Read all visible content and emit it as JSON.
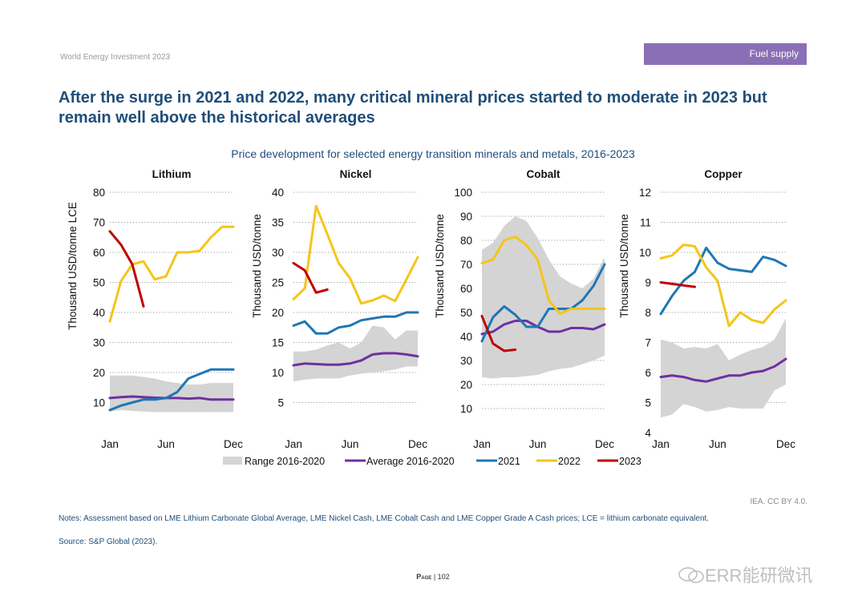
{
  "header": {
    "report": "World Energy Investment 2023",
    "section_tag": "Fuel supply"
  },
  "headline": "After the surge in 2021 and 2022, many critical mineral prices started to moderate in 2023 but remain well above the historical averages",
  "colors": {
    "range": "#d4d4d4",
    "average": "#7030a0",
    "y2021": "#1f77b4",
    "y2022": "#f5c518",
    "y2023": "#c00000",
    "title": "#1f4e79"
  },
  "chart_data": {
    "type": "line",
    "title": "Price development for selected energy transition minerals and metals, 2016-2023",
    "x_tick_labels": [
      "Jan",
      "Jun",
      "Dec"
    ],
    "legend": {
      "position": "bottom",
      "items": [
        "Range 2016-2020",
        "Average 2016-2020",
        "2021",
        "2022",
        "2023"
      ]
    },
    "panels": [
      {
        "title": "Lithium",
        "ylabel": "Thousand USD/tonne LCE",
        "ylim": [
          0,
          80
        ],
        "yticks": [
          10,
          20,
          30,
          40,
          50,
          60,
          70,
          80
        ],
        "range_low": [
          7,
          7.5,
          7.2,
          7,
          6.8,
          6.8,
          6.8,
          6.8,
          6.8,
          6.8,
          6.8,
          6.8
        ],
        "range_high": [
          19,
          19,
          19,
          18.5,
          18,
          17,
          16.5,
          16,
          16,
          16.5,
          16.5,
          16.5
        ],
        "average": [
          11.5,
          11.8,
          12,
          11.8,
          11.6,
          11.5,
          11.5,
          11.3,
          11.5,
          11,
          11,
          11
        ],
        "y2021": [
          7.5,
          9,
          10,
          11,
          11,
          11.5,
          13.5,
          18,
          19.5,
          21,
          21,
          21
        ],
        "y2022": [
          37,
          50.5,
          56,
          57,
          51,
          52,
          60,
          60,
          60.5,
          65,
          68.5,
          68.5
        ],
        "y2023": [
          67,
          62.5,
          56,
          42
        ]
      },
      {
        "title": "Nickel",
        "ylabel": "Thousand USD/tonne",
        "ylim": [
          0,
          40
        ],
        "yticks": [
          5,
          10,
          15,
          20,
          25,
          30,
          35,
          40
        ],
        "range_low": [
          8.5,
          8.8,
          9,
          9,
          9,
          9.5,
          9.8,
          10,
          10.2,
          10.5,
          11,
          11
        ],
        "range_high": [
          13.5,
          13.5,
          13.8,
          14.5,
          15,
          14,
          15,
          17.8,
          17.5,
          15.5,
          17,
          17
        ],
        "average": [
          11.2,
          11.5,
          11.4,
          11.3,
          11.3,
          11.5,
          12,
          13,
          13.2,
          13.2,
          13,
          12.7
        ],
        "y2021": [
          17.8,
          18.5,
          16.5,
          16.5,
          17.5,
          17.8,
          18.7,
          19,
          19.3,
          19.3,
          20,
          20
        ],
        "y2022": [
          22.2,
          24,
          37.7,
          33,
          28.2,
          25.7,
          21.5,
          22,
          22.8,
          21.9,
          25.5,
          29.2
        ],
        "y2023": [
          28.2,
          27,
          23.3,
          23.8
        ]
      },
      {
        "title": "Cobalt",
        "ylabel": "Thousand USD/tonne",
        "ylim": [
          0,
          100
        ],
        "yticks": [
          10,
          20,
          30,
          40,
          50,
          60,
          70,
          80,
          90,
          100
        ],
        "range_low": [
          23,
          22.5,
          23,
          23,
          23.5,
          24,
          25.5,
          26.5,
          27,
          28.5,
          30,
          32
        ],
        "range_high": [
          76,
          79,
          86,
          90,
          88,
          81,
          72,
          65,
          62,
          60,
          64,
          73
        ],
        "average": [
          41,
          42,
          45,
          46.5,
          46.5,
          44,
          42,
          42,
          43.5,
          43.5,
          43,
          45
        ],
        "y2021": [
          38,
          48,
          52.5,
          49,
          44,
          44,
          51.5,
          51.5,
          51.5,
          55,
          61,
          70
        ],
        "y2022": [
          70.5,
          72,
          80,
          81.5,
          78,
          72,
          55,
          49.5,
          51.5,
          51.5,
          51.5,
          51.5
        ],
        "y2023": [
          48.5,
          37,
          34,
          34.5
        ]
      },
      {
        "title": "Copper",
        "ylabel": "Thousand USD/tonne",
        "ylim": [
          4,
          12
        ],
        "yticks": [
          4,
          5,
          6,
          7,
          8,
          9,
          10,
          11,
          12
        ],
        "range_low": [
          4.5,
          4.6,
          4.95,
          4.85,
          4.7,
          4.75,
          4.85,
          4.8,
          4.8,
          4.8,
          5.4,
          5.6
        ],
        "range_high": [
          7.1,
          7.0,
          6.8,
          6.85,
          6.8,
          6.95,
          6.4,
          6.6,
          6.75,
          6.85,
          7.1,
          7.8
        ],
        "average": [
          5.85,
          5.9,
          5.85,
          5.75,
          5.7,
          5.8,
          5.9,
          5.9,
          6.0,
          6.05,
          6.2,
          6.45
        ],
        "y2021": [
          7.95,
          8.55,
          9.05,
          9.35,
          10.15,
          9.65,
          9.45,
          9.4,
          9.35,
          9.85,
          9.75,
          9.55
        ],
        "y2022": [
          9.8,
          9.9,
          10.25,
          10.2,
          9.5,
          9.05,
          7.55,
          8.0,
          7.75,
          7.65,
          8.1,
          8.4
        ],
        "y2023": [
          9.0,
          8.95,
          8.9,
          8.85
        ]
      }
    ]
  },
  "credit": "IEA. CC BY 4.0.",
  "notes": "Notes: Assessment based on LME Lithium Carbonate Global Average, LME Nickel Cash, LME Cobalt Cash and LME Copper Grade A Cash prices; LCE = lithium carbonate equivalent.",
  "source": "Source: S&P Global (2023).",
  "page": {
    "label": "Page",
    "number": "102"
  },
  "watermark": {
    "text": "ERR能研微讯",
    "icon": "chat-bubble-icon"
  }
}
